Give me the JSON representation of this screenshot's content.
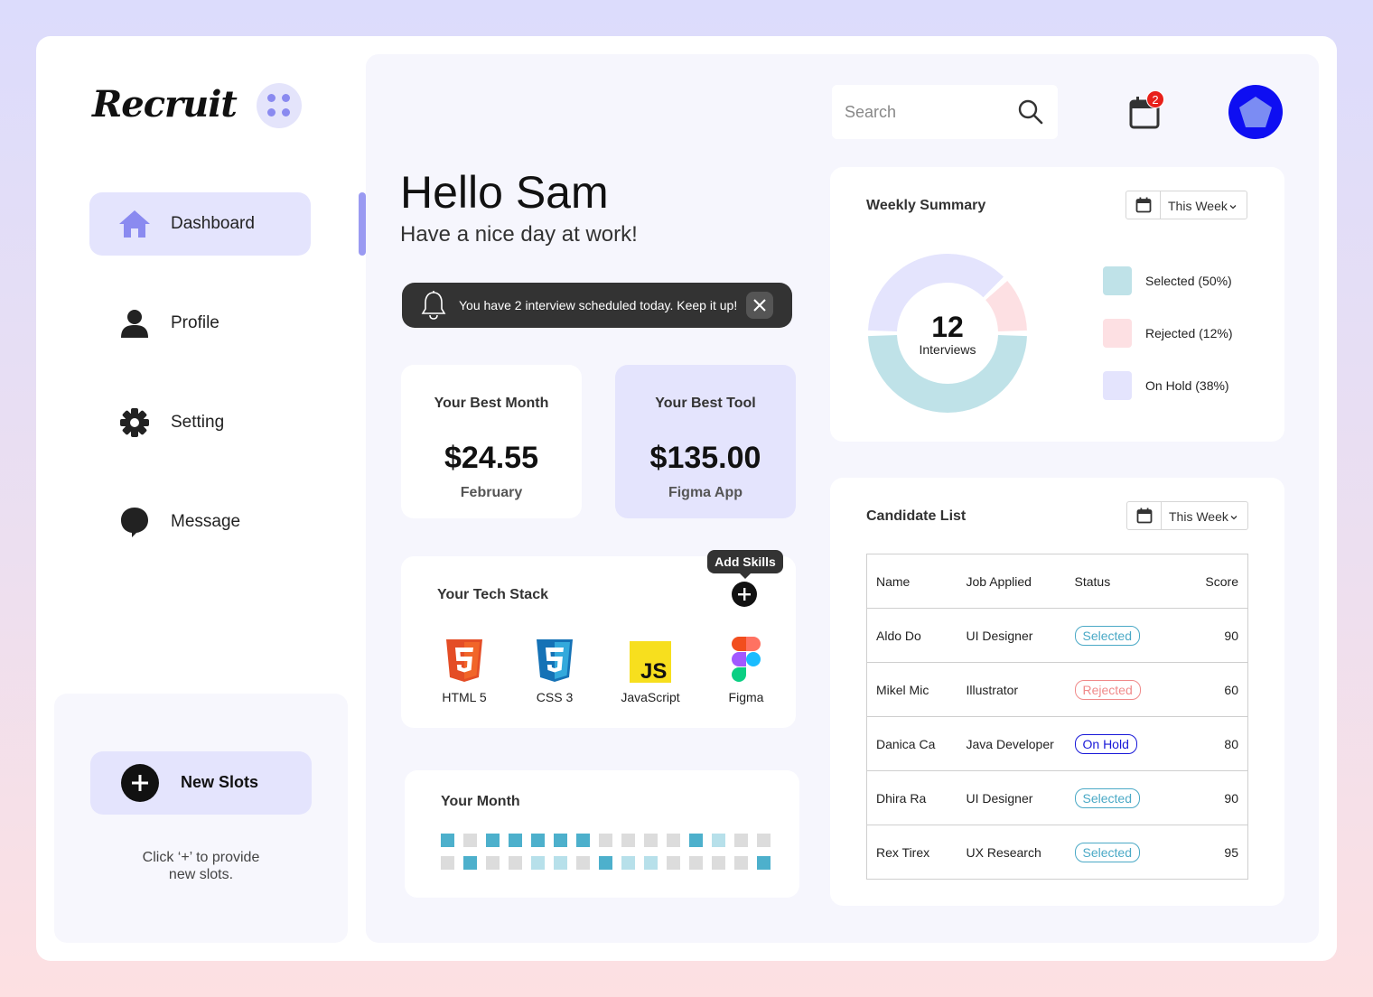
{
  "app": {
    "logo_text": "Recruit"
  },
  "sidebar": {
    "items": [
      {
        "label": "Dashboard",
        "icon": "home-icon",
        "active": true
      },
      {
        "label": "Profile",
        "icon": "user-icon",
        "active": false
      },
      {
        "label": "Setting",
        "icon": "gear-icon",
        "active": false
      },
      {
        "label": "Message",
        "icon": "chat-icon",
        "active": false
      }
    ],
    "new_slots_label": "New Slots",
    "slots_hint_line1": "Click ‘+’ to provide",
    "slots_hint_line2": "new slots."
  },
  "header": {
    "search_placeholder": "Search",
    "notification_count": "2"
  },
  "greeting": {
    "title": "Hello Sam",
    "subtitle": "Have a nice day at work!"
  },
  "toast": {
    "message": "You have 2 interview scheduled today. Keep it up!"
  },
  "stats": {
    "best_month": {
      "title": "Your Best Month",
      "value": "$24.55",
      "sub": "February"
    },
    "best_tool": {
      "title": "Your Best Tool",
      "value": "$135.00",
      "sub": "Figma App"
    }
  },
  "tech_stack": {
    "title": "Your Tech Stack",
    "add_tooltip": "Add Skills",
    "items": [
      {
        "label": "HTML 5",
        "icon": "html5-icon"
      },
      {
        "label": "CSS 3",
        "icon": "css3-icon"
      },
      {
        "label": "JavaScript",
        "icon": "javascript-icon"
      },
      {
        "label": "Figma",
        "icon": "figma-icon"
      }
    ]
  },
  "your_month": {
    "title": "Your Month",
    "rows": [
      [
        2,
        0,
        2,
        2,
        2,
        2,
        2,
        0,
        0,
        0,
        0,
        2,
        1,
        0,
        0
      ],
      [
        0,
        2,
        0,
        0,
        1,
        1,
        0,
        2,
        1,
        1,
        0,
        0,
        0,
        0,
        2
      ]
    ],
    "colors": {
      "0": "#dcdcdc",
      "1": "#b7e0ea",
      "2": "#4db0cc"
    }
  },
  "weekly_summary": {
    "title": "Weekly Summary",
    "period": "This Week",
    "total": "12",
    "total_label": "Interviews",
    "segments": [
      {
        "label": "Selected (50%)",
        "percent": 50,
        "color": "#bfe2e8"
      },
      {
        "label": "Rejected (12%)",
        "percent": 12,
        "color": "#fde0e3"
      },
      {
        "label": "On Hold (38%)",
        "percent": 38,
        "color": "#e4e4fd"
      }
    ]
  },
  "candidate_list": {
    "title": "Candidate List",
    "period": "This Week",
    "columns": [
      "Name",
      "Job Applied",
      "Status",
      "Score"
    ],
    "rows": [
      {
        "name": "Aldo Do",
        "job": "UI Designer",
        "status": "Selected",
        "score": "90"
      },
      {
        "name": "Mikel Mic",
        "job": "Illustrator",
        "status": "Rejected",
        "score": "60"
      },
      {
        "name": "Danica Ca",
        "job": "Java Developer",
        "status": "On Hold",
        "score": "80"
      },
      {
        "name": "Dhira Ra",
        "job": "UI Designer",
        "status": "Selected",
        "score": "90"
      },
      {
        "name": "Rex Tirex",
        "job": "UX Research",
        "status": "Selected",
        "score": "95"
      }
    ],
    "status_colors": {
      "Selected": {
        "text": "#4aa9c6",
        "border": "#4aa9c6"
      },
      "Rejected": {
        "text": "#f08a8a",
        "border": "#f08a8a"
      },
      "On Hold": {
        "text": "#1818d8",
        "border": "#1818d8"
      }
    }
  },
  "colors": {
    "accent": "#8a8af0",
    "lavender": "#e4e4fd",
    "avatar": "#0e0ef2",
    "badge": "#e8201a"
  }
}
